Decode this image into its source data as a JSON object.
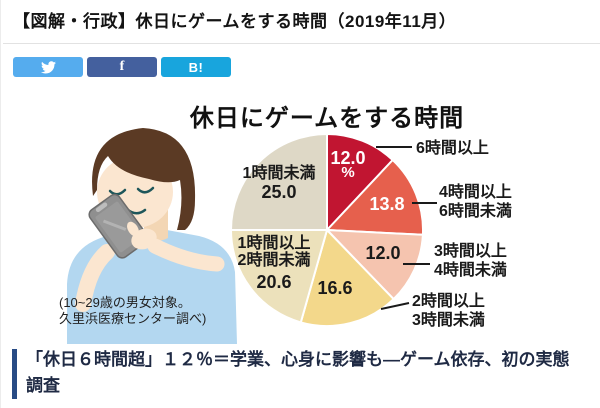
{
  "header": {
    "title": "【図解・行政】休日にゲームをする時間（2019年11月）"
  },
  "share_buttons": [
    {
      "name": "twitter",
      "label": "",
      "icon": "twitter-bird",
      "color": "#55acee"
    },
    {
      "name": "facebook",
      "label": "f",
      "icon": "facebook-f",
      "color": "#44609e"
    },
    {
      "name": "hatena",
      "label": "B!",
      "icon": "hatena-bookmark",
      "color": "#18a5dd"
    }
  ],
  "chart_data": {
    "type": "pie",
    "title": "休日にゲームをする時間",
    "unit": "%",
    "direction": "clockwise",
    "start_angle_deg": 0,
    "slices": [
      {
        "label": "6時間以上",
        "label_lines": [
          "6時間以上"
        ],
        "value": 12.0,
        "value_label": "12.0",
        "unit": "%",
        "color": "#c11531",
        "value_text_color": "#ffffff"
      },
      {
        "label": "4時間以上6時間未満",
        "label_lines": [
          "4時間以上",
          "6時間未満"
        ],
        "value": 13.8,
        "value_label": "13.8",
        "color": "#e6604d",
        "value_text_color": "#ffffff"
      },
      {
        "label": "3時間以上4時間未満",
        "label_lines": [
          "3時間以上",
          "4時間未満"
        ],
        "value": 12.0,
        "value_label": "12.0",
        "color": "#f5c4af",
        "value_text_color": "#1a1a1a"
      },
      {
        "label": "2時間以上3時間未満",
        "label_lines": [
          "2時間以上",
          "3時間未満"
        ],
        "value": 16.6,
        "value_label": "16.6",
        "color": "#f3d88b",
        "value_text_color": "#1a1a1a"
      },
      {
        "label": "1時間以上2時間未満",
        "label_lines": [
          "1時間以上",
          "2時間未満"
        ],
        "value": 20.6,
        "value_label": "20.6",
        "color": "#ece1bb",
        "value_text_color": "#1a1a1a"
      },
      {
        "label": "1時間未満",
        "label_lines": [
          "1時間未満"
        ],
        "value": 25.0,
        "value_label": "25.0",
        "color": "#ded8c6",
        "value_text_color": "#1a1a1a"
      }
    ],
    "note_lines": [
      "(10~29歳の男女対象。",
      "久里浜医療センター調べ)"
    ]
  },
  "headline": {
    "text": "「休日６時間超」１２％＝学業、心身に影響も―ゲーム依存、初の実態調査",
    "bar_color": "#284b85",
    "text_color": "#1f2a44"
  }
}
